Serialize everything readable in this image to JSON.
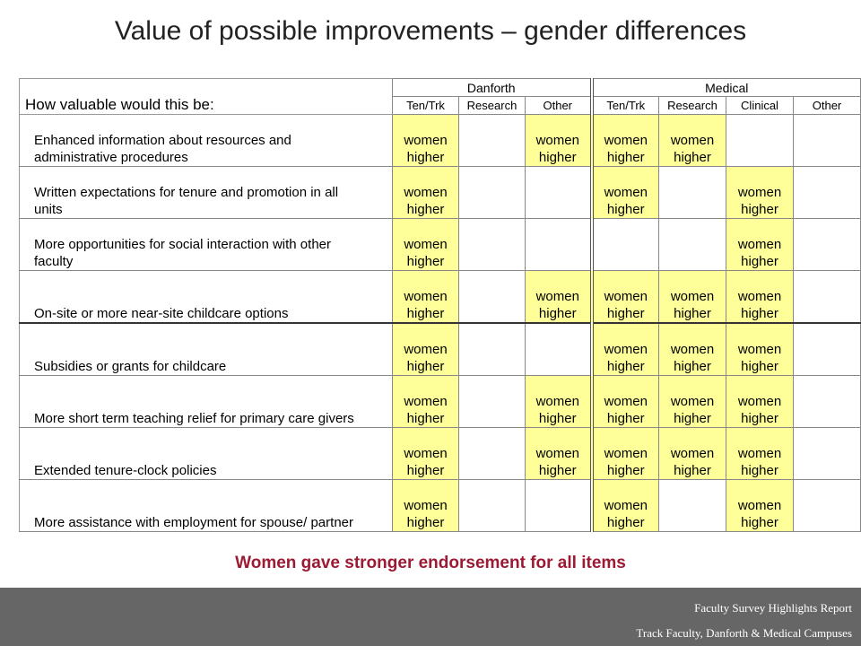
{
  "title": "Value of possible improvements – gender differences",
  "table": {
    "question": "How valuable would this be:",
    "groups": [
      "Danforth",
      "Medical"
    ],
    "columns": [
      "Ten/Trk",
      "Research",
      "Other",
      "Ten/Trk",
      "Research",
      "Clinical",
      "Other"
    ],
    "cell_text": [
      "women",
      "higher"
    ],
    "highlight_color": "#ffff99",
    "rows": [
      {
        "lines": [
          "Enhanced information about resources and",
          "administrative procedures"
        ],
        "cells": [
          true,
          false,
          true,
          true,
          true,
          false,
          false
        ]
      },
      {
        "lines": [
          "Written expectations for tenure and promotion in all",
          "units"
        ],
        "cells": [
          true,
          false,
          false,
          true,
          false,
          true,
          false
        ]
      },
      {
        "lines": [
          "More opportunities for social interaction with other",
          "faculty"
        ],
        "cells": [
          true,
          false,
          false,
          false,
          false,
          true,
          false
        ]
      },
      {
        "lines": [
          "",
          "On-site or more near-site childcare options"
        ],
        "cells": [
          true,
          false,
          true,
          true,
          true,
          true,
          false
        ]
      },
      {
        "lines": [
          "",
          "Subsidies or grants for childcare"
        ],
        "cells": [
          true,
          false,
          false,
          true,
          true,
          true,
          false
        ]
      },
      {
        "lines": [
          "",
          "More short term teaching relief for primary care givers"
        ],
        "cells": [
          true,
          false,
          true,
          true,
          true,
          true,
          false
        ]
      },
      {
        "lines": [
          "",
          "Extended tenure-clock policies"
        ],
        "cells": [
          true,
          false,
          true,
          true,
          true,
          true,
          false
        ]
      },
      {
        "lines": [
          "",
          "More assistance with employment for spouse/ partner"
        ],
        "cells": [
          true,
          false,
          false,
          true,
          false,
          true,
          false
        ]
      }
    ]
  },
  "footnote": "Women gave stronger endorsement for all items",
  "footer": {
    "line1": "Faculty Survey Highlights Report",
    "line2": "Track Faculty, Danforth & Medical Campuses"
  }
}
